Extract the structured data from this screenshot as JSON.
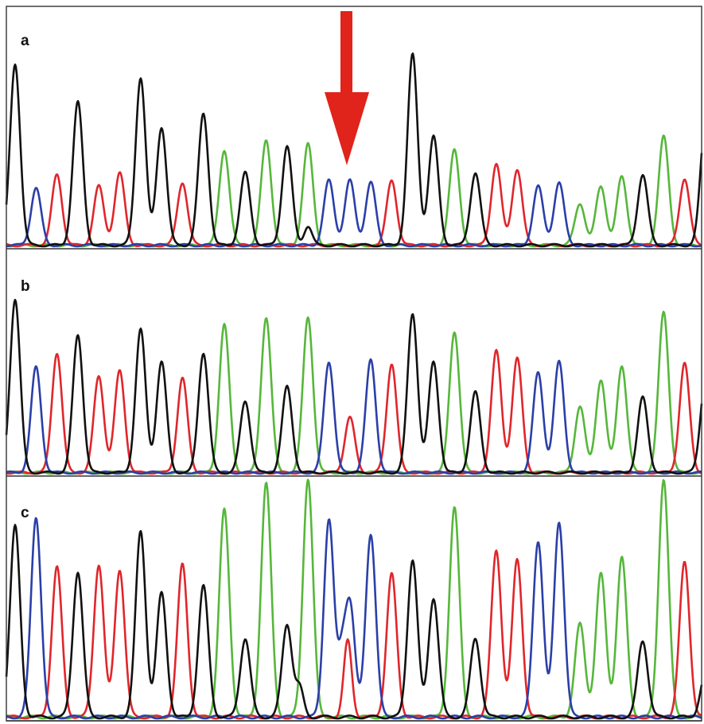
{
  "colors": {
    "black": "#111111",
    "blue": "#2b3fa8",
    "red": "#e0262b",
    "green": "#56b73a",
    "arrow": "#e0231b",
    "frame": "#333333"
  },
  "arrow": {
    "icon": "down-arrow-icon",
    "points_to_peak_index": 15,
    "panel": "a"
  },
  "panels": [
    {
      "label": "a",
      "peaks": [
        [
          "K",
          0.95
        ],
        [
          "B",
          0.3
        ],
        [
          "R",
          0.37
        ],
        [
          "K",
          0.75
        ],
        [
          "R",
          0.31
        ],
        [
          "R",
          0.38
        ],
        [
          "K",
          0.88
        ],
        [
          "K",
          0.62
        ],
        [
          "R",
          0.33
        ],
        [
          "K",
          0.69
        ],
        [
          "G",
          0.5
        ],
        [
          "K",
          0.38
        ],
        [
          "G",
          0.55
        ],
        [
          "K",
          0.52
        ],
        [
          "G",
          0.53
        ],
        [
          "B",
          0.34
        ],
        [
          "B",
          0.34
        ],
        [
          "B",
          0.33
        ],
        [
          "R",
          0.34
        ],
        [
          "K",
          1.0
        ],
        [
          "K",
          0.57
        ],
        [
          "G",
          0.5
        ],
        [
          "K",
          0.38
        ],
        [
          "R",
          0.43
        ],
        [
          "R",
          0.4
        ],
        [
          "B",
          0.31
        ],
        [
          "B",
          0.33
        ],
        [
          "G",
          0.22
        ],
        [
          "G",
          0.31
        ],
        [
          "G",
          0.36
        ],
        [
          "K",
          0.37
        ],
        [
          "G",
          0.57
        ],
        [
          "R",
          0.35
        ],
        [
          "K",
          0.65
        ]
      ],
      "shoulders": [
        [
          "K",
          14.0,
          0.1
        ]
      ]
    },
    {
      "label": "b",
      "peaks": [
        [
          "K",
          0.97
        ],
        [
          "B",
          0.59
        ],
        [
          "R",
          0.67
        ],
        [
          "K",
          0.77
        ],
        [
          "R",
          0.54
        ],
        [
          "R",
          0.57
        ],
        [
          "K",
          0.8
        ],
        [
          "K",
          0.62
        ],
        [
          "R",
          0.53
        ],
        [
          "K",
          0.67
        ],
        [
          "G",
          0.83
        ],
        [
          "K",
          0.4
        ],
        [
          "G",
          0.87
        ],
        [
          "K",
          0.48
        ],
        [
          "G",
          0.87
        ],
        [
          "B",
          0.62
        ],
        [
          "R",
          0.31
        ],
        [
          "B",
          0.63
        ],
        [
          "R",
          0.61
        ],
        [
          "K",
          0.89
        ],
        [
          "K",
          0.62
        ],
        [
          "G",
          0.79
        ],
        [
          "K",
          0.45
        ],
        [
          "R",
          0.68
        ],
        [
          "R",
          0.64
        ],
        [
          "B",
          0.56
        ],
        [
          "B",
          0.62
        ],
        [
          "G",
          0.37
        ],
        [
          "G",
          0.52
        ],
        [
          "G",
          0.6
        ],
        [
          "K",
          0.42
        ],
        [
          "G",
          0.9
        ],
        [
          "R",
          0.61
        ],
        [
          "K",
          0.53
        ]
      ],
      "shoulders": []
    },
    {
      "label": "c",
      "peaks": [
        [
          "K",
          0.8
        ],
        [
          "B",
          0.84
        ],
        [
          "R",
          0.63
        ],
        [
          "K",
          0.61
        ],
        [
          "R",
          0.64
        ],
        [
          "R",
          0.62
        ],
        [
          "K",
          0.78
        ],
        [
          "K",
          0.52
        ],
        [
          "R",
          0.64
        ],
        [
          "K",
          0.55
        ],
        [
          "G",
          0.87
        ],
        [
          "K",
          0.33
        ],
        [
          "G",
          0.98
        ],
        [
          "K",
          0.39
        ],
        [
          "G",
          1.0
        ],
        [
          "B",
          0.83
        ],
        [
          "B",
          0.48
        ],
        [
          "B",
          0.77
        ],
        [
          "R",
          0.6
        ],
        [
          "K",
          0.66
        ],
        [
          "K",
          0.5
        ],
        [
          "G",
          0.88
        ],
        [
          "K",
          0.33
        ],
        [
          "R",
          0.7
        ],
        [
          "R",
          0.66
        ],
        [
          "B",
          0.74
        ],
        [
          "B",
          0.82
        ],
        [
          "G",
          0.39
        ],
        [
          "G",
          0.6
        ],
        [
          "G",
          0.67
        ],
        [
          "K",
          0.32
        ],
        [
          "G",
          1.0
        ],
        [
          "R",
          0.65
        ],
        [
          "K",
          0.18
        ]
      ],
      "shoulders": [
        [
          "R",
          15.9,
          0.32
        ],
        [
          "K",
          13.6,
          0.12
        ],
        [
          "B",
          15.6,
          0.2
        ]
      ]
    }
  ]
}
